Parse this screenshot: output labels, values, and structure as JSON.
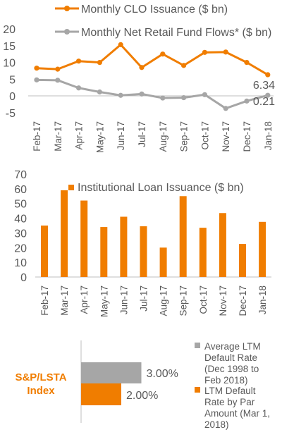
{
  "colors": {
    "orange": "#f07d00",
    "gray": "#a6a6a6",
    "text": "#595959",
    "axis": "#bfbfbf",
    "brand": "#f07d00"
  },
  "chart_data": [
    {
      "type": "line",
      "title": "",
      "categories": [
        "Feb-17",
        "Mar-17",
        "Apr-17",
        "May-17",
        "Jun-17",
        "Jul-17",
        "Aug-17",
        "Sep-17",
        "Oct-17",
        "Nov-17",
        "Dec-17",
        "Jan-18"
      ],
      "series": [
        {
          "name": "Monthly CLO Issuance ($ bn)",
          "values": [
            8.3,
            8.0,
            10.4,
            10.0,
            15.3,
            8.5,
            12.5,
            9.1,
            13.0,
            13.1,
            10.0,
            6.34
          ]
        },
        {
          "name": "Monthly Net Retail Fund Flows* ($ bn)",
          "values": [
            4.8,
            4.7,
            2.4,
            1.2,
            0.2,
            0.6,
            -0.6,
            -0.5,
            0.4,
            -3.7,
            -1.5,
            0.21
          ]
        }
      ],
      "ylim": [
        -5,
        20
      ],
      "yticks": [
        "-5",
        "0",
        "5",
        "10",
        "15",
        "20"
      ],
      "data_labels": [
        "6.34",
        "0.21"
      ],
      "grid": false,
      "legend": "top"
    },
    {
      "type": "bar",
      "title": "",
      "categories": [
        "Feb-17",
        "Mar-17",
        "Apr-17",
        "May-17",
        "Jun-17",
        "Jul-17",
        "Aug-17",
        "Sep-17",
        "Oct-17",
        "Nov-17",
        "Dec-17",
        "Jan-18"
      ],
      "series": [
        {
          "name": "Institutional Loan Issuance ($ bn)",
          "values": [
            35,
            59,
            52,
            34,
            41,
            34.5,
            20,
            55,
            33.5,
            43.5,
            22.5,
            37.5
          ]
        }
      ],
      "ylim": [
        0,
        70
      ],
      "yticks": [
        "0",
        "10",
        "20",
        "30",
        "40",
        "50",
        "60",
        "70"
      ],
      "grid": false,
      "legend": "top"
    },
    {
      "type": "bar",
      "orientation": "horizontal",
      "category_label": "S&P/LSTA Index",
      "series": [
        {
          "name": "Average LTM Default Rate (Dec 1998 to Feb 2018)",
          "value": 3.0,
          "label": "3.00%"
        },
        {
          "name": "LTM Default Rate by Par Amount (Mar 1, 2018)",
          "value": 2.0,
          "label": "2.00%"
        }
      ],
      "legend_lines": [
        [
          "Average LTM",
          "Default Rate",
          "(Dec 1998 to",
          "Feb 2018)"
        ],
        [
          "LTM Default",
          "Rate by Par",
          "Amount (Mar 1,",
          "2018)"
        ]
      ],
      "grid": false,
      "legend": "right"
    }
  ]
}
